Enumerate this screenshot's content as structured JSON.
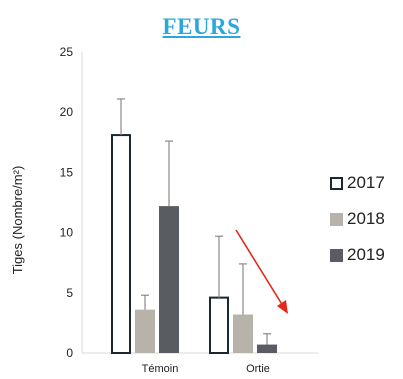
{
  "chart_data": {
    "type": "bar",
    "title": "FEURS",
    "ylabel": "Tiges (Nombre/m²)",
    "xlabel": "",
    "ylim": [
      0,
      25
    ],
    "yticks": [
      "0",
      "5",
      "10",
      "15",
      "20",
      "25"
    ],
    "categories": [
      "Témoin",
      "Ortie"
    ],
    "series": [
      {
        "name": "2017",
        "values": [
          18.1,
          4.6
        ],
        "errors": [
          3.0,
          5.1
        ],
        "color": "#ffffff",
        "stroke": "#1b2733"
      },
      {
        "name": "2018",
        "values": [
          3.6,
          3.2
        ],
        "errors": [
          1.2,
          4.2
        ],
        "color": "#b8b3aa",
        "stroke": "#b8b3aa"
      },
      {
        "name": "2019",
        "values": [
          12.2,
          0.7
        ],
        "errors": [
          5.4,
          0.9
        ],
        "color": "#5a5c63",
        "stroke": "#5a5c63"
      }
    ],
    "annotation": {
      "type": "arrow",
      "color": "#e0291c"
    },
    "grid": false,
    "legend": "right"
  }
}
